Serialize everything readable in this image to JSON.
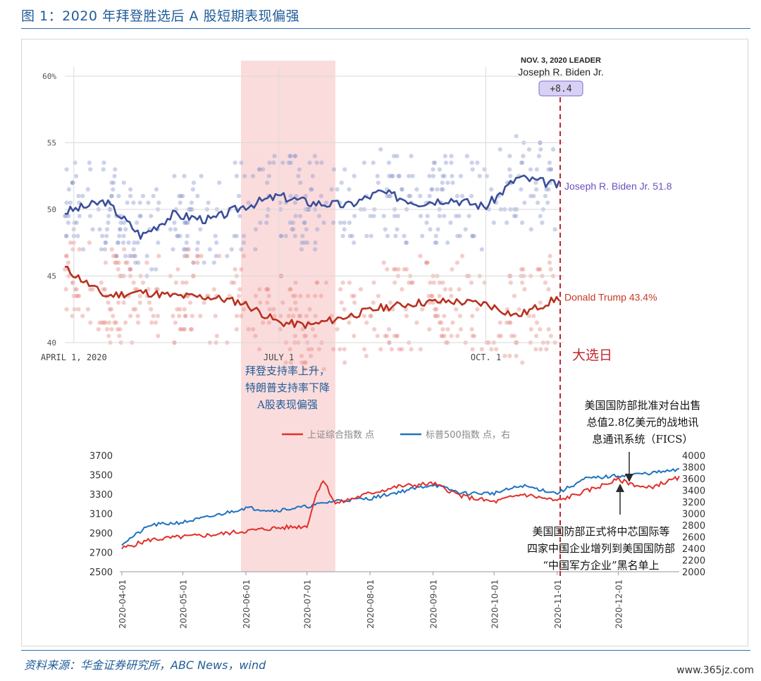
{
  "figure": {
    "title": "图 1：2020 年拜登胜选后 A 股短期表现偏强",
    "source": "资料来源：华金证券研究所，ABC News，wind",
    "watermark": "www.365jz.com"
  },
  "colors": {
    "biden": "#3a4f9a",
    "trump": "#b8311f",
    "biden_dot": "#8d9bd0",
    "trump_dot": "#e6908a",
    "shade": "#fbdcdc",
    "election": "#c0262d",
    "sse": "#e0302a",
    "spx": "#1e73be",
    "accent_blue": "#1f5c99"
  },
  "chart_data": [
    {
      "type": "line",
      "ylim": [
        40,
        60
      ],
      "y_ticks": [
        "60%",
        "55",
        "50",
        "45",
        "40"
      ],
      "x_ticks": [
        "APRIL 1, 2020",
        "JULY 1",
        "OCT. 1"
      ],
      "leader_box": {
        "heading": "NOV. 3, 2020 LEADER",
        "name": "Joseph R. Biden Jr.",
        "margin": "+8.4"
      },
      "series": [
        {
          "name": "Joseph R. Biden Jr.",
          "final_label": "Joseph R. Biden Jr. 51.8",
          "x": [
            "2020-03-28",
            "2020-04-15",
            "2020-05-01",
            "2020-05-15",
            "2020-06-01",
            "2020-06-15",
            "2020-07-01",
            "2020-07-15",
            "2020-08-01",
            "2020-08-15",
            "2020-09-01",
            "2020-09-15",
            "2020-10-01",
            "2020-10-15",
            "2020-11-03"
          ],
          "values": [
            49.8,
            50.6,
            48.0,
            49.6,
            49.2,
            50.2,
            51.0,
            50.5,
            50.3,
            51.3,
            50.5,
            50.8,
            50.2,
            52.4,
            51.8
          ]
        },
        {
          "name": "Donald Trump",
          "final_label": "Donald Trump 43.4%",
          "x": [
            "2020-03-28",
            "2020-04-15",
            "2020-05-01",
            "2020-05-15",
            "2020-06-01",
            "2020-06-15",
            "2020-07-01",
            "2020-07-15",
            "2020-08-01",
            "2020-08-15",
            "2020-09-01",
            "2020-09-15",
            "2020-10-01",
            "2020-10-15",
            "2020-11-03"
          ],
          "values": [
            45.6,
            43.5,
            43.8,
            43.5,
            43.4,
            43.0,
            41.5,
            41.3,
            42.0,
            42.6,
            43.0,
            43.1,
            42.9,
            42.0,
            43.4
          ]
        }
      ],
      "annotations": {
        "shade_label": [
          "拜登支持率上升，",
          "特朗普支持率下降",
          "A股表现偏强"
        ],
        "election_day": "大选日"
      }
    },
    {
      "type": "line",
      "x_ticks": [
        "2020-04-01",
        "2020-05-01",
        "2020-06-01",
        "2020-07-01",
        "2020-08-01",
        "2020-09-01",
        "2020-10-01",
        "2020-11-01",
        "2020-12-01"
      ],
      "ylim_left": [
        2500,
        3700
      ],
      "y_ticks_left": [
        "3700",
        "3500",
        "3300",
        "3100",
        "2900",
        "2700",
        "2500"
      ],
      "ylim_right": [
        2000,
        4000
      ],
      "y_ticks_right": [
        "4000",
        "3800",
        "3600",
        "3400",
        "3200",
        "3000",
        "2800",
        "2600",
        "2400",
        "2200",
        "2000"
      ],
      "legend": [
        "上证综合指数 点",
        "标普500指数 点，右"
      ],
      "series": [
        {
          "name": "上证综合指数 点",
          "axis": "left",
          "x": [
            "2020-04-01",
            "2020-04-15",
            "2020-05-01",
            "2020-05-15",
            "2020-06-01",
            "2020-06-15",
            "2020-07-01",
            "2020-07-06",
            "2020-07-09",
            "2020-07-15",
            "2020-08-01",
            "2020-08-15",
            "2020-09-01",
            "2020-09-15",
            "2020-10-01",
            "2020-10-15",
            "2020-11-01",
            "2020-11-15",
            "2020-12-01",
            "2020-12-15",
            "2020-12-31"
          ],
          "values": [
            2740,
            2830,
            2860,
            2880,
            2920,
            2950,
            2970,
            3330,
            3450,
            3200,
            3310,
            3380,
            3410,
            3280,
            3220,
            3300,
            3230,
            3330,
            3450,
            3360,
            3470
          ]
        },
        {
          "name": "标普500指数 点，右",
          "axis": "right",
          "x": [
            "2020-04-01",
            "2020-04-15",
            "2020-05-01",
            "2020-05-15",
            "2020-06-01",
            "2020-06-15",
            "2020-07-01",
            "2020-07-15",
            "2020-08-01",
            "2020-08-15",
            "2020-09-01",
            "2020-09-15",
            "2020-10-01",
            "2020-10-15",
            "2020-11-01",
            "2020-11-15",
            "2020-12-01",
            "2020-12-15",
            "2020-12-31"
          ],
          "values": [
            2480,
            2800,
            2850,
            2950,
            3100,
            3050,
            3120,
            3220,
            3260,
            3370,
            3500,
            3350,
            3350,
            3480,
            3350,
            3600,
            3650,
            3690,
            3750
          ]
        }
      ],
      "annotations": {
        "fics": [
          "美国国防部批准对台出售",
          "总值2.8亿美元的战地讯",
          "息通讯系统（FICS）"
        ],
        "smic": [
          "美国国防部正式将中芯国际等",
          "四家中国企业增列到美国国防部",
          "“中国军方企业”黑名单上"
        ]
      }
    }
  ]
}
